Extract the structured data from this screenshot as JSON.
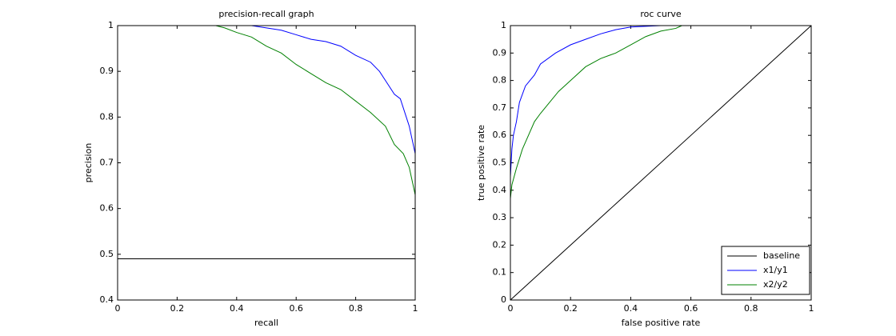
{
  "chart_data": [
    {
      "type": "line",
      "title": "precision-recall graph",
      "xlabel": "recall",
      "ylabel": "precision",
      "xlim": [
        0,
        1
      ],
      "xticks": [
        0,
        0.2,
        0.4,
        0.6,
        0.8,
        1
      ],
      "ylim": [
        0.4,
        1
      ],
      "yticks": [
        0.4,
        0.5,
        0.6,
        0.7,
        0.8,
        0.9,
        1
      ],
      "series": [
        {
          "color": "#000000",
          "x": [
            0,
            1
          ],
          "values": [
            0.49,
            0.49
          ]
        },
        {
          "color": "#0000ff",
          "x": [
            0.35,
            0.45,
            0.5,
            0.55,
            0.6,
            0.65,
            0.7,
            0.75,
            0.8,
            0.85,
            0.88,
            0.9,
            0.93,
            0.95,
            0.97,
            0.98,
            0.99,
            1,
            1
          ],
          "values": [
            1,
            1,
            0.995,
            0.99,
            0.98,
            0.97,
            0.965,
            0.955,
            0.935,
            0.92,
            0.9,
            0.88,
            0.85,
            0.84,
            0.8,
            0.78,
            0.75,
            0.72,
            0.66
          ]
        },
        {
          "color": "#008000",
          "x": [
            0.33,
            0.36,
            0.4,
            0.45,
            0.5,
            0.55,
            0.6,
            0.65,
            0.7,
            0.75,
            0.8,
            0.85,
            0.9,
            0.93,
            0.96,
            0.98,
            1
          ],
          "values": [
            1,
            0.995,
            0.985,
            0.975,
            0.955,
            0.94,
            0.915,
            0.895,
            0.875,
            0.86,
            0.835,
            0.81,
            0.78,
            0.74,
            0.72,
            0.69,
            0.63
          ]
        }
      ]
    },
    {
      "type": "line",
      "title": "roc curve",
      "xlabel": "false positive rate",
      "ylabel": "true positive rate",
      "xlim": [
        0,
        1
      ],
      "xticks": [
        0,
        0.2,
        0.4,
        0.6,
        0.8,
        1
      ],
      "ylim": [
        0,
        1
      ],
      "yticks": [
        0,
        0.1,
        0.2,
        0.3,
        0.4,
        0.5,
        0.6,
        0.7,
        0.8,
        0.9,
        1
      ],
      "legend": "lower right",
      "series": [
        {
          "name": "baseline",
          "color": "#000000",
          "x": [
            0,
            1
          ],
          "values": [
            0,
            1
          ]
        },
        {
          "name": "x1/y1",
          "color": "#0000ff",
          "x": [
            0,
            0.005,
            0.01,
            0.02,
            0.03,
            0.05,
            0.08,
            0.1,
            0.15,
            0.2,
            0.25,
            0.3,
            0.35,
            0.4,
            0.5
          ],
          "values": [
            0.45,
            0.55,
            0.6,
            0.65,
            0.72,
            0.78,
            0.82,
            0.86,
            0.9,
            0.93,
            0.95,
            0.97,
            0.985,
            0.995,
            1
          ]
        },
        {
          "name": "x2/y2",
          "color": "#008000",
          "x": [
            0,
            0.005,
            0.02,
            0.04,
            0.06,
            0.08,
            0.1,
            0.13,
            0.16,
            0.2,
            0.25,
            0.3,
            0.35,
            0.4,
            0.45,
            0.5,
            0.55,
            0.57
          ],
          "values": [
            0.37,
            0.42,
            0.48,
            0.55,
            0.6,
            0.65,
            0.68,
            0.72,
            0.76,
            0.8,
            0.85,
            0.88,
            0.9,
            0.93,
            0.96,
            0.98,
            0.99,
            1
          ]
        }
      ]
    }
  ]
}
